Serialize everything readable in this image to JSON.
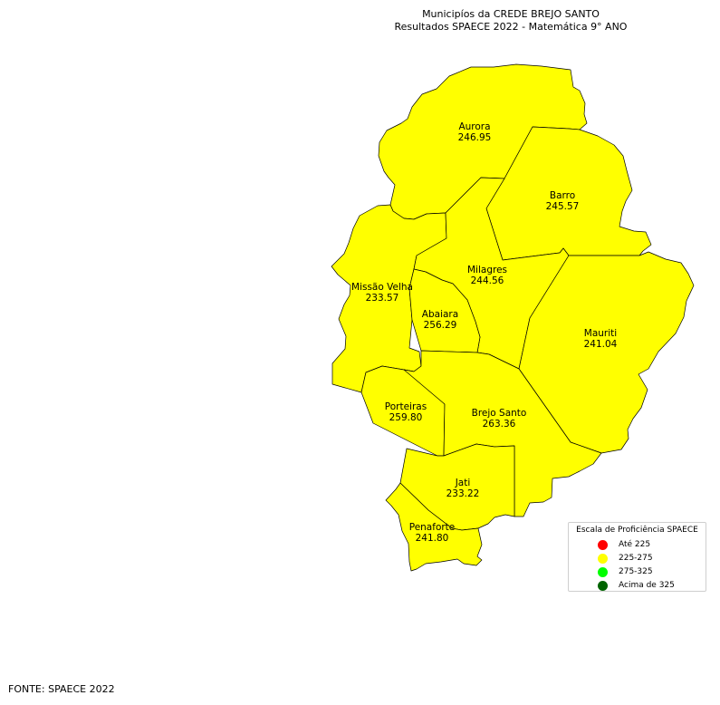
{
  "title": "Municipíos da CREDE BREJO SANTO",
  "subtitle": "Resultados SPAECE 2022 - Matemática 9° ANO",
  "fill_color": "#ffff00",
  "municipalities": [
    {
      "name": "Aurora",
      "value": "246.95"
    },
    {
      "name": "Barro",
      "value": "245.57"
    },
    {
      "name": "Milagres",
      "value": "244.56"
    },
    {
      "name": "Missão Velha",
      "value": "233.57"
    },
    {
      "name": "Abaiara",
      "value": "256.29"
    },
    {
      "name": "Mauriti",
      "value": "241.04"
    },
    {
      "name": "Porteiras",
      "value": "259.80"
    },
    {
      "name": "Brejo Santo",
      "value": "263.36"
    },
    {
      "name": "Jati",
      "value": "233.22"
    },
    {
      "name": "Penaforte",
      "value": "241.80"
    }
  ],
  "legend": {
    "title": "Escala de Proficiência SPAECE",
    "items": [
      {
        "label": "Até 225",
        "color": "#ff0000"
      },
      {
        "label": "225-275",
        "color": "#ffff00"
      },
      {
        "label": "275-325",
        "color": "#00ff00"
      },
      {
        "label": "Acima de 325",
        "color": "#006400"
      }
    ]
  },
  "source": "FONTE: SPAECE 2022"
}
